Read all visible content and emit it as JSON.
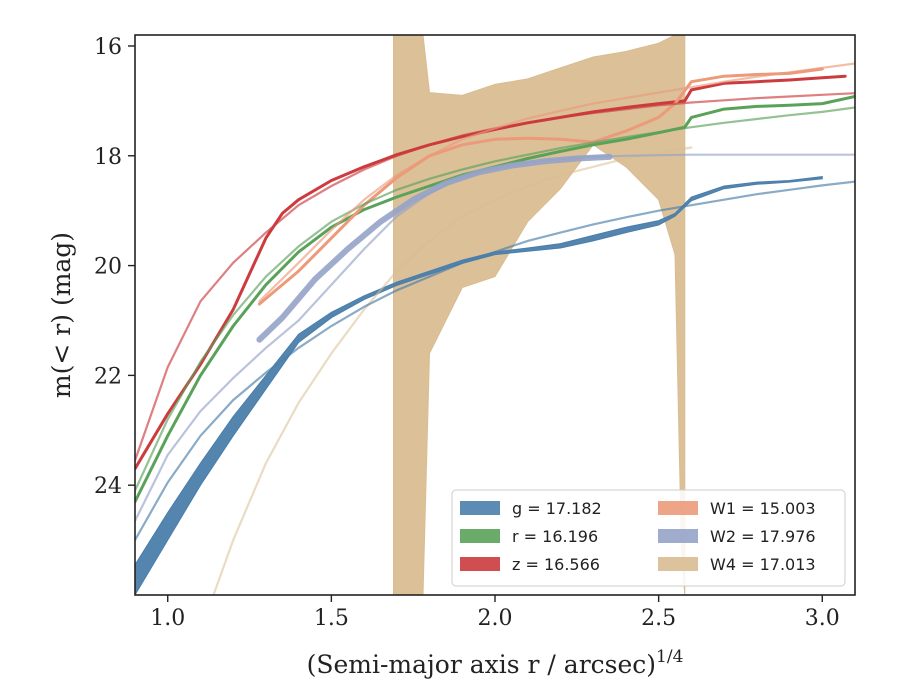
{
  "chart_data": {
    "type": "line",
    "xlabel": "(Semi-major axis r / arcsec)",
    "xlabel_sup": "1/4",
    "ylabel": "m(< r) (mag)",
    "xlim": [
      0.9,
      3.1
    ],
    "ylim": [
      26.0,
      15.8
    ],
    "y_inverted": true,
    "x_ticks": [
      1.0,
      1.5,
      2.0,
      2.5,
      3.0
    ],
    "x_tick_labels": [
      "1.0",
      "1.5",
      "2.0",
      "2.5",
      "3.0"
    ],
    "y_ticks": [
      16,
      18,
      20,
      22,
      24
    ],
    "y_tick_labels": [
      "16",
      "18",
      "20",
      "22",
      "24"
    ],
    "grid": false,
    "legend_position": "lower-right",
    "colors": {
      "g": "#4a7eab",
      "r": "#5aa25a",
      "z": "#cc3b3d",
      "W1": "#ec9a7a",
      "W2": "#95a3c8",
      "W4": "#d9bd92"
    },
    "legend": [
      {
        "band": "g",
        "label": "g = 17.182"
      },
      {
        "band": "r",
        "label": "r = 16.196"
      },
      {
        "band": "z",
        "label": "z = 16.566"
      },
      {
        "band": "W1",
        "label": "W1 = 15.003"
      },
      {
        "band": "W2",
        "label": "W2 = 17.976"
      },
      {
        "band": "W4",
        "label": "W4 = 17.013"
      }
    ],
    "series": [
      {
        "band": "g",
        "role": "data-band",
        "x": [
          0.9,
          1.0,
          1.1,
          1.2,
          1.3,
          1.4,
          1.5,
          1.6,
          1.7,
          1.8,
          1.9,
          2.0,
          2.1,
          2.2,
          2.3,
          2.4,
          2.5,
          2.55,
          2.6,
          2.7,
          2.8,
          2.9,
          3.0
        ],
        "y_upper": [
          25.45,
          24.5,
          23.6,
          22.75,
          22.0,
          21.25,
          20.85,
          20.55,
          20.3,
          20.1,
          19.9,
          19.75,
          19.68,
          19.6,
          19.45,
          19.3,
          19.18,
          19.05,
          18.75,
          18.55,
          18.48,
          18.45,
          18.38
        ],
        "y_lower": [
          26.0,
          25.0,
          24.0,
          23.1,
          22.25,
          21.4,
          20.95,
          20.62,
          20.36,
          20.16,
          19.96,
          19.8,
          19.74,
          19.68,
          19.55,
          19.4,
          19.26,
          19.1,
          18.82,
          18.6,
          18.52,
          18.48,
          18.42
        ]
      },
      {
        "band": "r",
        "role": "data",
        "x": [
          0.9,
          1.0,
          1.1,
          1.2,
          1.3,
          1.4,
          1.5,
          1.6,
          1.7,
          1.8,
          1.9,
          2.0,
          2.1,
          2.2,
          2.3,
          2.4,
          2.5,
          2.58,
          2.6,
          2.7,
          2.8,
          2.9,
          3.0,
          3.1
        ],
        "y": [
          24.3,
          23.1,
          22.0,
          21.1,
          20.35,
          19.75,
          19.3,
          18.98,
          18.75,
          18.55,
          18.35,
          18.2,
          18.05,
          17.92,
          17.8,
          17.7,
          17.58,
          17.48,
          17.3,
          17.15,
          17.1,
          17.08,
          17.05,
          16.92
        ]
      },
      {
        "band": "z",
        "role": "data",
        "x": [
          0.9,
          1.0,
          1.1,
          1.2,
          1.3,
          1.35,
          1.4,
          1.5,
          1.6,
          1.7,
          1.8,
          1.9,
          2.0,
          2.1,
          2.2,
          2.3,
          2.4,
          2.5,
          2.58,
          2.6,
          2.7,
          2.8,
          2.9,
          3.0,
          3.07
        ],
        "y": [
          23.7,
          22.7,
          21.8,
          20.8,
          19.5,
          19.05,
          18.8,
          18.45,
          18.2,
          17.98,
          17.8,
          17.65,
          17.52,
          17.4,
          17.3,
          17.2,
          17.12,
          17.05,
          17.0,
          16.8,
          16.68,
          16.65,
          16.62,
          16.58,
          16.55
        ]
      },
      {
        "band": "W1",
        "role": "data",
        "x": [
          1.28,
          1.4,
          1.5,
          1.6,
          1.7,
          1.8,
          1.9,
          2.0,
          2.1,
          2.2,
          2.3,
          2.4,
          2.5,
          2.55,
          2.6,
          2.7,
          2.8,
          2.9,
          3.0
        ],
        "y": [
          20.7,
          20.1,
          19.5,
          18.9,
          18.4,
          18.0,
          17.8,
          17.7,
          17.68,
          17.7,
          17.75,
          17.55,
          17.3,
          17.05,
          16.65,
          16.55,
          16.52,
          16.5,
          16.42
        ]
      },
      {
        "band": "W2",
        "role": "data",
        "x": [
          1.28,
          1.35,
          1.45,
          1.55,
          1.65,
          1.75,
          1.85,
          1.95,
          2.05,
          2.15,
          2.25,
          2.35
        ],
        "y": [
          21.35,
          20.95,
          20.25,
          19.7,
          19.2,
          18.8,
          18.5,
          18.3,
          18.18,
          18.1,
          18.05,
          18.02
        ]
      },
      {
        "band": "W4",
        "role": "data-band",
        "x": [
          1.69,
          1.72,
          1.78,
          1.8,
          1.9,
          2.0,
          2.1,
          2.2,
          2.3,
          2.4,
          2.5,
          2.55,
          2.57,
          2.58
        ],
        "y_upper": [
          15.8,
          15.8,
          15.8,
          16.85,
          16.9,
          16.7,
          16.6,
          16.4,
          16.2,
          16.1,
          15.95,
          15.8,
          15.8,
          15.8
        ],
        "y_lower": [
          26.0,
          26.0,
          26.0,
          21.6,
          20.4,
          20.2,
          19.2,
          18.6,
          17.8,
          18.2,
          18.8,
          19.8,
          25.2,
          26.0
        ]
      },
      {
        "band": "g",
        "role": "model",
        "x": [
          0.9,
          1.0,
          1.1,
          1.2,
          1.3,
          1.4,
          1.5,
          1.6,
          1.7,
          1.8,
          1.9,
          2.0,
          2.1,
          2.2,
          2.3,
          2.4,
          2.5,
          2.6,
          2.7,
          2.8,
          2.9,
          3.0,
          3.1
        ],
        "y": [
          25.0,
          23.95,
          23.1,
          22.45,
          21.95,
          21.5,
          21.1,
          20.75,
          20.45,
          20.2,
          19.95,
          19.75,
          19.55,
          19.4,
          19.25,
          19.12,
          19.0,
          18.9,
          18.8,
          18.7,
          18.62,
          18.54,
          18.47
        ]
      },
      {
        "band": "r",
        "role": "model",
        "x": [
          0.9,
          1.0,
          1.1,
          1.2,
          1.3,
          1.4,
          1.5,
          1.6,
          1.7,
          1.8,
          1.9,
          2.0,
          2.1,
          2.2,
          2.3,
          2.4,
          2.5,
          2.6,
          2.7,
          2.8,
          2.9,
          3.0,
          3.1
        ],
        "y": [
          24.1,
          22.8,
          21.75,
          20.9,
          20.2,
          19.65,
          19.2,
          18.88,
          18.62,
          18.42,
          18.25,
          18.1,
          17.98,
          17.86,
          17.76,
          17.66,
          17.57,
          17.48,
          17.4,
          17.33,
          17.26,
          17.2,
          17.12
        ]
      },
      {
        "band": "z",
        "role": "model",
        "x": [
          0.9,
          1.0,
          1.1,
          1.2,
          1.3,
          1.4,
          1.5,
          1.6,
          1.7,
          1.8,
          1.9,
          2.0,
          2.1,
          2.2,
          2.3,
          2.4,
          2.5,
          2.6,
          2.7,
          2.8,
          2.9,
          3.0,
          3.1
        ],
        "y": [
          23.55,
          21.85,
          20.65,
          19.95,
          19.4,
          18.9,
          18.55,
          18.25,
          18.0,
          17.8,
          17.63,
          17.5,
          17.4,
          17.3,
          17.22,
          17.15,
          17.08,
          17.03,
          16.99,
          16.95,
          16.92,
          16.89,
          16.86
        ]
      },
      {
        "band": "W1",
        "role": "model",
        "x": [
          1.28,
          1.4,
          1.5,
          1.6,
          1.7,
          1.8,
          1.9,
          2.0,
          2.1,
          2.2,
          2.3,
          2.4,
          2.5,
          2.6,
          2.7,
          2.8,
          2.9,
          3.0,
          3.1
        ],
        "y": [
          20.65,
          19.95,
          19.35,
          18.8,
          18.35,
          18.0,
          17.7,
          17.5,
          17.32,
          17.18,
          17.05,
          16.95,
          16.85,
          16.75,
          16.65,
          16.56,
          16.48,
          16.4,
          16.32
        ]
      },
      {
        "band": "W2",
        "role": "model",
        "x": [
          0.9,
          1.0,
          1.1,
          1.2,
          1.3,
          1.4,
          1.5,
          1.6,
          1.7,
          1.8,
          1.9,
          2.0,
          2.1,
          2.2,
          2.3,
          2.4,
          2.5,
          2.6,
          2.7,
          2.8,
          2.9,
          3.0,
          3.1
        ],
        "y": [
          24.65,
          23.45,
          22.65,
          22.05,
          21.5,
          21.0,
          20.35,
          19.7,
          19.1,
          18.68,
          18.4,
          18.22,
          18.12,
          18.06,
          18.02,
          18.0,
          17.99,
          17.98,
          17.98,
          17.98,
          17.98,
          17.98,
          17.98
        ]
      },
      {
        "band": "W4",
        "role": "model",
        "x": [
          1.14,
          1.2,
          1.3,
          1.4,
          1.5,
          1.6,
          1.7,
          1.8,
          1.9,
          2.0,
          2.1,
          2.2,
          2.3,
          2.4,
          2.5,
          2.6
        ],
        "y": [
          26.0,
          25.0,
          23.6,
          22.5,
          21.6,
          20.8,
          20.1,
          19.55,
          19.1,
          18.8,
          18.55,
          18.35,
          18.2,
          18.05,
          17.95,
          17.85
        ]
      }
    ]
  }
}
